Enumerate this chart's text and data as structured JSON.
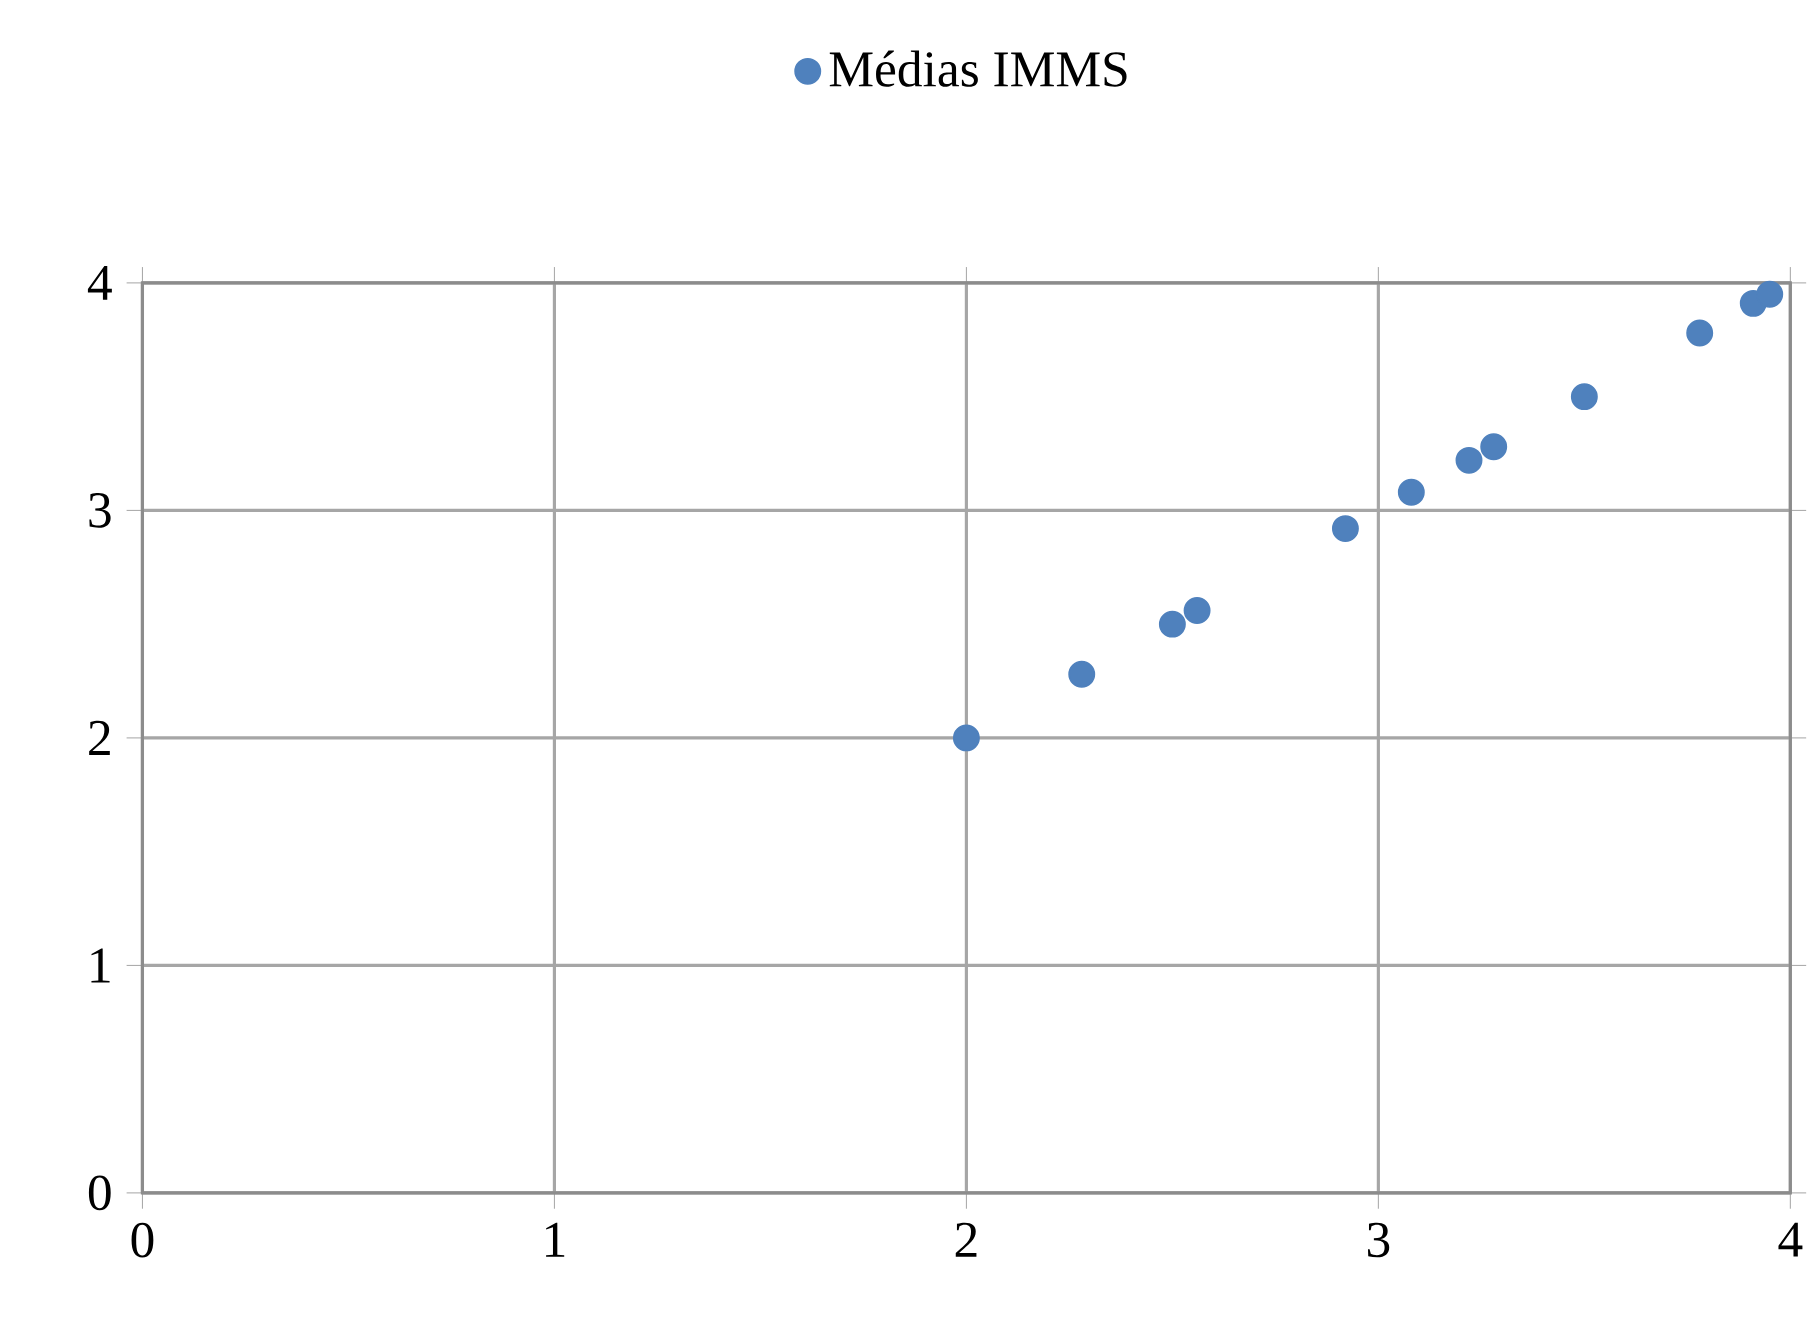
{
  "chart_data": {
    "type": "scatter",
    "xlim": [
      0,
      4
    ],
    "ylim": [
      0,
      4
    ],
    "xticks": [
      0,
      1,
      2,
      3,
      4
    ],
    "yticks": [
      0,
      1,
      2,
      3,
      4
    ],
    "grid": true,
    "legend": "top",
    "series": [
      {
        "name": "Médias IMMS",
        "color": "#4f81bd",
        "x": [
          2.0,
          2.28,
          2.5,
          2.56,
          2.92,
          3.08,
          3.22,
          3.28,
          3.5,
          3.78,
          3.91,
          3.95
        ],
        "values": [
          2.0,
          2.28,
          2.5,
          2.56,
          2.92,
          3.08,
          3.22,
          3.28,
          3.5,
          3.78,
          3.91,
          3.95
        ]
      }
    ]
  }
}
